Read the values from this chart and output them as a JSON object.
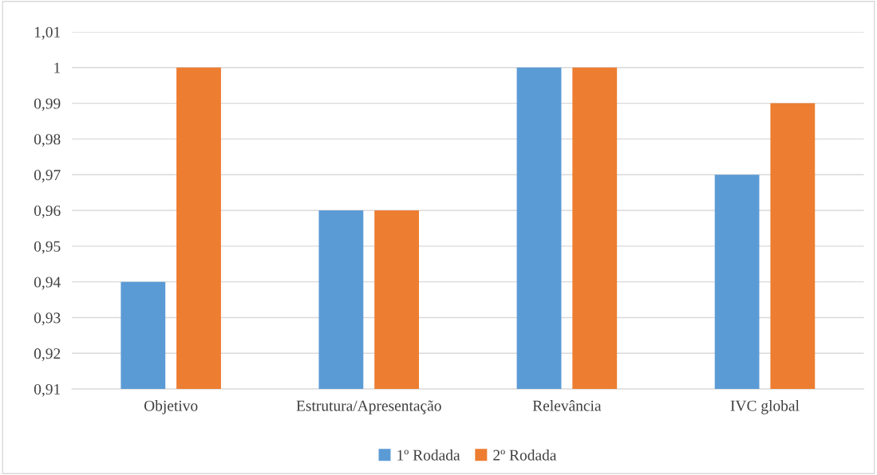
{
  "chart_data": {
    "type": "bar",
    "categories": [
      "Objetivo",
      "Estrutura/Apresentação",
      "Relevância",
      "IVC global"
    ],
    "series": [
      {
        "name": "1º Rodada",
        "color": "#5b9bd5",
        "values": [
          0.94,
          0.96,
          1.0,
          0.97
        ]
      },
      {
        "name": "2º Rodada",
        "color": "#ed7d31",
        "values": [
          1.0,
          0.96,
          1.0,
          0.99
        ]
      }
    ],
    "ylim": [
      0.91,
      1.01
    ],
    "yticks": [
      {
        "value": 0.91,
        "label": "0,91"
      },
      {
        "value": 0.92,
        "label": "0,92"
      },
      {
        "value": 0.93,
        "label": "0,93"
      },
      {
        "value": 0.94,
        "label": "0,94"
      },
      {
        "value": 0.95,
        "label": "0,95"
      },
      {
        "value": 0.96,
        "label": "0,96"
      },
      {
        "value": 0.97,
        "label": "0,97"
      },
      {
        "value": 0.98,
        "label": "0,98"
      },
      {
        "value": 0.99,
        "label": "0,99"
      },
      {
        "value": 1,
        "label": "1"
      },
      {
        "value": 1.01,
        "label": "1,01"
      }
    ],
    "grid": "y",
    "legend": "bottom"
  }
}
